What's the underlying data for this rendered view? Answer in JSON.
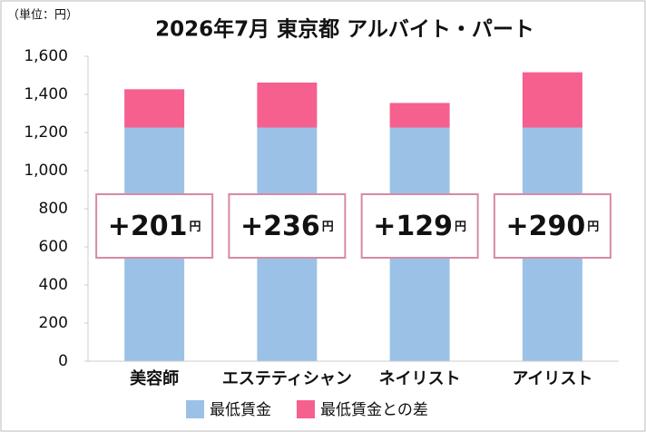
{
  "chart_data": {
    "type": "stacked_bar",
    "title": "2026年7月 東京都 アルバイト・パート",
    "unit_label": "（単位：円）",
    "categories": [
      "美容師",
      "エステティシャン",
      "ネイリスト",
      "アイリスト"
    ],
    "series": [
      {
        "name": "最低賃金",
        "color": "#9bc2e6",
        "values": [
          1226,
          1226,
          1226,
          1226
        ]
      },
      {
        "name": "最低賃金との差",
        "color": "#f5608e",
        "values": [
          201,
          236,
          129,
          290
        ],
        "value_labels": [
          "+201",
          "+236",
          "+129",
          "+290"
        ]
      }
    ],
    "value_unit": "円",
    "ylim": [
      0,
      1600
    ],
    "yticks": [
      0,
      200,
      400,
      600,
      800,
      {
        "value": 1000,
        "label": "1,000"
      },
      {
        "value": 1200,
        "label": "1,200"
      },
      {
        "value": 1400,
        "label": "1,400"
      },
      {
        "value": 1600,
        "label": "1,600"
      }
    ]
  }
}
